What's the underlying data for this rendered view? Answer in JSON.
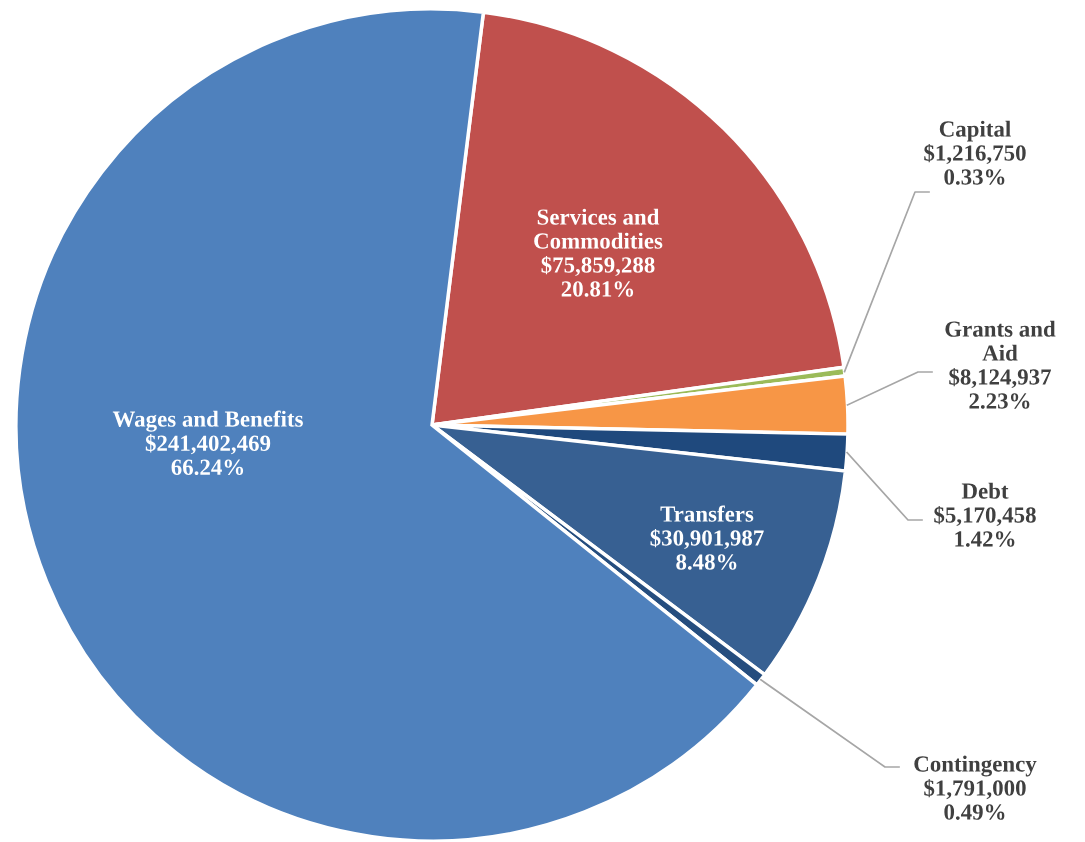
{
  "chart_data": {
    "type": "pie",
    "categories": [
      "Services and Commodities",
      "Capital",
      "Grants and Aid",
      "Debt",
      "Transfers",
      "Contingency",
      "Wages and Benefits"
    ],
    "values": [
      75859288,
      1216750,
      8124937,
      5170458,
      30901987,
      1791000,
      241402469
    ],
    "value_labels": [
      "$75,859,288\n20.81%",
      "$1,216,750\n0.33%",
      "$8,124,937\n2.23%",
      "$5,170,458\n1.42%",
      "$30,901,987\n8.48%",
      "$1,791,000\n0.49%",
      "$241,402,469\n66.24%"
    ],
    "colors": [
      "#c0504d",
      "#9bbb59",
      "#f79646",
      "#1f497d",
      "#376092",
      "#254d7e",
      "#4f81bd"
    ],
    "legend": false
  }
}
